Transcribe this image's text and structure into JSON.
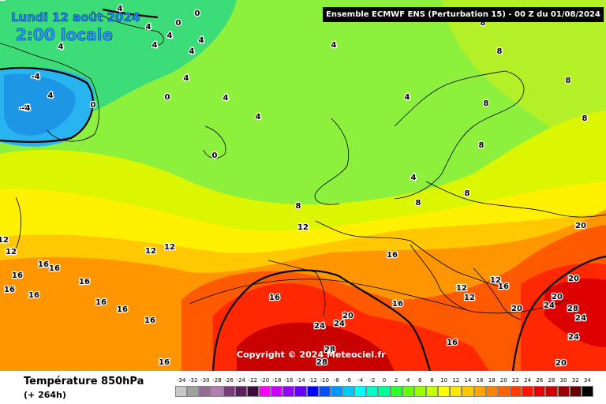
{
  "header": {
    "date": "Lundi 12 août 2024",
    "time": "2:00 locale",
    "model": "Ensemble ECMWF ENS  (Perturbation 15)  -  00 Z du 01/08/2024"
  },
  "copyright": "Copyright © 2024 Meteociel.fr",
  "footer": {
    "variable": "Température 850hPa",
    "lead": "(+ 264h)"
  },
  "legend": {
    "ticks": [
      "-34",
      "-32",
      "-30",
      "-28",
      "-26",
      "-24",
      "-22",
      "-20",
      "-18",
      "-16",
      "-14",
      "-12",
      "-10",
      "-8",
      "-6",
      "-4",
      "-2",
      "0",
      "2",
      "4",
      "6",
      "8",
      "10",
      "12",
      "14",
      "16",
      "18",
      "20",
      "22",
      "24",
      "26",
      "28",
      "30",
      "32",
      "34"
    ],
    "colors": [
      "#c8c8c8",
      "#a0a0a0",
      "#946c94",
      "#b47cb4",
      "#7a3c7a",
      "#5a1e5a",
      "#3c0a3c",
      "#ff00ff",
      "#c800ff",
      "#9600ff",
      "#6400ff",
      "#0000ff",
      "#0050ff",
      "#0096ff",
      "#00c8ff",
      "#00ffff",
      "#00ffc8",
      "#00ff96",
      "#32ff32",
      "#64ff00",
      "#96ff00",
      "#c8ff00",
      "#ffff00",
      "#ffe600",
      "#ffc800",
      "#ffa500",
      "#ff8200",
      "#ff6400",
      "#ff3c00",
      "#ff1400",
      "#e60000",
      "#c80000",
      "#960000",
      "#640000",
      "#000000"
    ]
  },
  "contour_labels": [
    {
      "text": "0"
    },
    {
      "text": "0"
    },
    {
      "text": "0"
    },
    {
      "text": "0"
    },
    {
      "text": "0"
    },
    {
      "text": "4"
    },
    {
      "text": "4"
    },
    {
      "text": "4"
    },
    {
      "text": "4"
    },
    {
      "text": "4"
    },
    {
      "text": "4"
    },
    {
      "text": "4"
    },
    {
      "text": "4"
    },
    {
      "text": "4"
    },
    {
      "text": "4"
    },
    {
      "text": "4"
    },
    {
      "text": "4"
    },
    {
      "text": "4"
    },
    {
      "text": "4"
    },
    {
      "text": "-4"
    },
    {
      "text": "-4"
    },
    {
      "text": "-4"
    },
    {
      "text": "8"
    },
    {
      "text": "8"
    },
    {
      "text": "8"
    },
    {
      "text": "8"
    },
    {
      "text": "8"
    },
    {
      "text": "8"
    },
    {
      "text": "8"
    },
    {
      "text": "8"
    },
    {
      "text": "8"
    },
    {
      "text": "12"
    },
    {
      "text": "12"
    },
    {
      "text": "12"
    },
    {
      "text": "12"
    },
    {
      "text": "12"
    },
    {
      "text": "12"
    },
    {
      "text": "12"
    },
    {
      "text": "12"
    },
    {
      "text": "16"
    },
    {
      "text": "16"
    },
    {
      "text": "16"
    },
    {
      "text": "16"
    },
    {
      "text": "16"
    },
    {
      "text": "16"
    },
    {
      "text": "16"
    },
    {
      "text": "16"
    },
    {
      "text": "16"
    },
    {
      "text": "16"
    },
    {
      "text": "16"
    },
    {
      "text": "16"
    },
    {
      "text": "16"
    },
    {
      "text": "16"
    },
    {
      "text": "16"
    },
    {
      "text": "20"
    },
    {
      "text": "20"
    },
    {
      "text": "20"
    },
    {
      "text": "20"
    },
    {
      "text": "20"
    },
    {
      "text": "20"
    },
    {
      "text": "24"
    },
    {
      "text": "24"
    },
    {
      "text": "24"
    },
    {
      "text": "24"
    },
    {
      "text": "24"
    },
    {
      "text": "28"
    },
    {
      "text": "28"
    },
    {
      "text": "28"
    },
    {
      "text": "28"
    }
  ]
}
